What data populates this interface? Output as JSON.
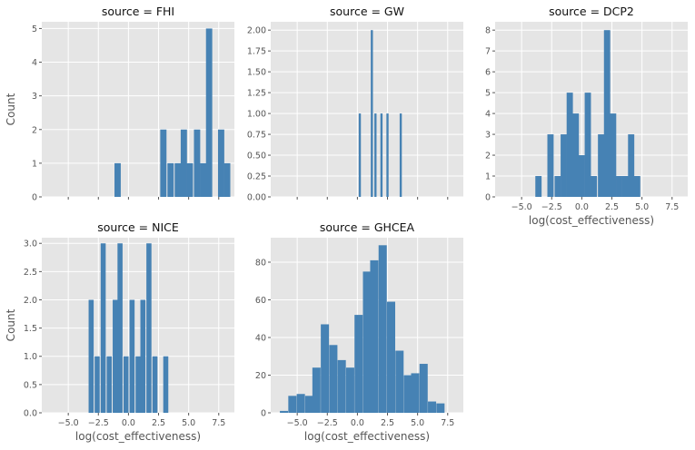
{
  "chart_data": [
    {
      "type": "bar",
      "title": "source = FHI",
      "xlabel": "",
      "ylabel": "Count",
      "xlim": [
        -7.2,
        8.8
      ],
      "ylim": [
        0,
        5.2
      ],
      "xticks": [
        -5,
        -2.5,
        0,
        2.5,
        5,
        7.5
      ],
      "xtick_labels": [],
      "yticks": [
        0,
        1,
        2,
        3,
        4,
        5
      ],
      "ytick_labels": [
        "0",
        "1",
        "2",
        "3",
        "4",
        "5"
      ],
      "bars": [
        [
          -0.9,
          1
        ],
        [
          2.9,
          2
        ],
        [
          3.5,
          1
        ],
        [
          4.1,
          1
        ],
        [
          4.6,
          2
        ],
        [
          5.1,
          1
        ],
        [
          5.7,
          2
        ],
        [
          6.2,
          1
        ],
        [
          6.7,
          5
        ],
        [
          7.2,
          0
        ],
        [
          7.7,
          2
        ],
        [
          8.2,
          1
        ]
      ],
      "bin_width": 0.52,
      "grid": true
    },
    {
      "type": "bar",
      "title": "source = GW",
      "xlabel": "",
      "ylabel": "",
      "xlim": [
        -7.2,
        8.8
      ],
      "ylim": [
        0,
        2.1
      ],
      "xticks": [
        -5,
        -2.5,
        0,
        2.5,
        5,
        7.5
      ],
      "xtick_labels": [],
      "yticks": [
        0,
        0.25,
        0.5,
        0.75,
        1,
        1.25,
        1.5,
        1.75,
        2
      ],
      "ytick_labels": [
        "0.00",
        "0.25",
        "0.50",
        "0.75",
        "1.00",
        "1.25",
        "1.50",
        "1.75",
        "2.00"
      ],
      "bars": [
        [
          0.2,
          1
        ],
        [
          1.2,
          2
        ],
        [
          1.5,
          1
        ],
        [
          2.0,
          1
        ],
        [
          2.5,
          1
        ],
        [
          3.6,
          1
        ]
      ],
      "bin_width": 0.18,
      "grid": true
    },
    {
      "type": "bar",
      "title": "source = DCP2",
      "xlabel": "log(cost_effectiveness)",
      "ylabel": "",
      "xlim": [
        -7.2,
        8.8
      ],
      "ylim": [
        0,
        8.4
      ],
      "xticks": [
        -5,
        -2.5,
        0,
        2.5,
        5,
        7.5
      ],
      "xtick_labels": [
        "−5.0",
        "−2.5",
        "0.0",
        "2.5",
        "5.0",
        "7.5"
      ],
      "yticks": [
        0,
        1,
        2,
        3,
        4,
        5,
        6,
        7,
        8
      ],
      "ytick_labels": [
        "0",
        "1",
        "2",
        "3",
        "4",
        "5",
        "6",
        "7",
        "8"
      ],
      "bars": [
        [
          -3.6,
          1
        ],
        [
          -2.6,
          3
        ],
        [
          -2.0,
          1
        ],
        [
          -1.5,
          3
        ],
        [
          -1.0,
          5
        ],
        [
          -0.5,
          4
        ],
        [
          0.0,
          2
        ],
        [
          0.5,
          5
        ],
        [
          1.0,
          1
        ],
        [
          1.6,
          3
        ],
        [
          2.1,
          8
        ],
        [
          2.6,
          4
        ],
        [
          3.1,
          1
        ],
        [
          3.6,
          1
        ],
        [
          4.1,
          3
        ],
        [
          4.6,
          1
        ]
      ],
      "bin_width": 0.52,
      "grid": true
    },
    {
      "type": "bar",
      "title": "source = NICE",
      "xlabel": "log(cost_effectiveness)",
      "ylabel": "Count",
      "xlim": [
        -7.2,
        8.8
      ],
      "ylim": [
        0,
        3.1
      ],
      "xticks": [
        -5,
        -2.5,
        0,
        2.5,
        5,
        7.5
      ],
      "xtick_labels": [
        "−5.0",
        "−2.5",
        "0.0",
        "2.5",
        "5.0",
        "7.5"
      ],
      "yticks": [
        0,
        0.5,
        1,
        1.5,
        2,
        2.5,
        3
      ],
      "ytick_labels": [
        "0.0",
        "0.5",
        "1.0",
        "1.5",
        "2.0",
        "2.5",
        "3.0"
      ],
      "bars": [
        [
          -3.1,
          2
        ],
        [
          -2.6,
          1
        ],
        [
          -2.1,
          3
        ],
        [
          -1.6,
          1
        ],
        [
          -1.1,
          2
        ],
        [
          -0.7,
          3
        ],
        [
          -0.2,
          1
        ],
        [
          0.3,
          2
        ],
        [
          0.8,
          1
        ],
        [
          1.2,
          2
        ],
        [
          1.7,
          3
        ],
        [
          2.2,
          1
        ],
        [
          3.1,
          1
        ]
      ],
      "bin_width": 0.42,
      "grid": true
    },
    {
      "type": "bar",
      "title": "source = GHCEA",
      "xlabel": "log(cost_effectiveness)",
      "ylabel": "",
      "xlim": [
        -7.2,
        8.8
      ],
      "ylim": [
        0,
        93
      ],
      "xticks": [
        -5,
        -2.5,
        0,
        2.5,
        5,
        7.5
      ],
      "xtick_labels": [
        "−5.0",
        "−2.5",
        "0.0",
        "2.5",
        "5.0",
        "7.5"
      ],
      "yticks": [
        0,
        20,
        40,
        60,
        80
      ],
      "ytick_labels": [
        "0",
        "20",
        "40",
        "60",
        "80"
      ],
      "bars": [
        [
          -6.1,
          1
        ],
        [
          -5.4,
          9
        ],
        [
          -4.7,
          10
        ],
        [
          -4.0,
          9
        ],
        [
          -3.4,
          24
        ],
        [
          -2.7,
          47
        ],
        [
          -2.0,
          36
        ],
        [
          -1.3,
          28
        ],
        [
          -0.6,
          24
        ],
        [
          0.1,
          52
        ],
        [
          0.8,
          75
        ],
        [
          1.4,
          81
        ],
        [
          2.1,
          89
        ],
        [
          2.8,
          59
        ],
        [
          3.5,
          33
        ],
        [
          4.2,
          20
        ],
        [
          4.8,
          21
        ],
        [
          5.5,
          26
        ],
        [
          6.2,
          6
        ],
        [
          6.9,
          5
        ]
      ],
      "bin_width": 0.68,
      "grid": true
    }
  ]
}
